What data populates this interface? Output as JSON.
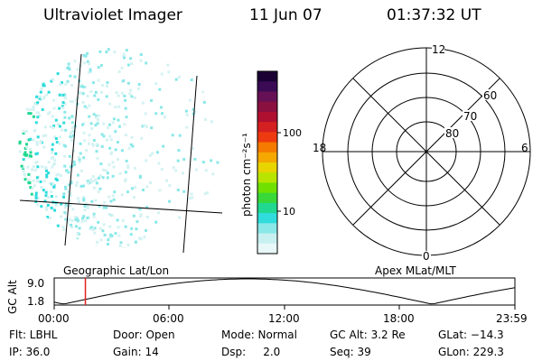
{
  "header": {
    "instrument": "Ultraviolet Imager",
    "date": "11 Jun 07",
    "time": "01:37:32 UT"
  },
  "colorbar": {
    "unit_label": "photon cm⁻²s⁻¹",
    "ticks": [
      "100",
      "10"
    ],
    "colors": [
      "#1a0033",
      "#3a0a55",
      "#661155",
      "#8a1040",
      "#b01030",
      "#d42020",
      "#ee3a10",
      "#f57a00",
      "#f5a800",
      "#e8d400",
      "#b8e400",
      "#70e000",
      "#38d838",
      "#20d890",
      "#30dcdc",
      "#8ae8e8",
      "#c8f0f0",
      "#e8f8f8"
    ]
  },
  "polar": {
    "labels": [
      "12",
      "60",
      "70",
      "80",
      "18",
      "6",
      "0"
    ]
  },
  "timeline": {
    "left_label": "Geographic Lat/Lon",
    "right_label": "Apex MLat/MLT",
    "axis_title": "GC Alt",
    "y_ticks": [
      "9.0",
      "1.8"
    ],
    "x_ticks": [
      "00:00",
      "06:00",
      "12:00",
      "18:00",
      "23:59"
    ],
    "marker_color": "#e02020",
    "current_time_fraction": 0.0677
  },
  "status": {
    "filter": "Flt: LBHL",
    "door": "Door: Open",
    "mode": "Mode: Normal",
    "gc_alt": "GC Alt: 3.2 Re",
    "glat": "GLat: −14.3",
    "ip": "IP: 36.0",
    "gain": "Gain: 14",
    "dsp": "Dsp:     2.0",
    "seq": "Seq: 39",
    "glon": "GLon: 229.3"
  }
}
